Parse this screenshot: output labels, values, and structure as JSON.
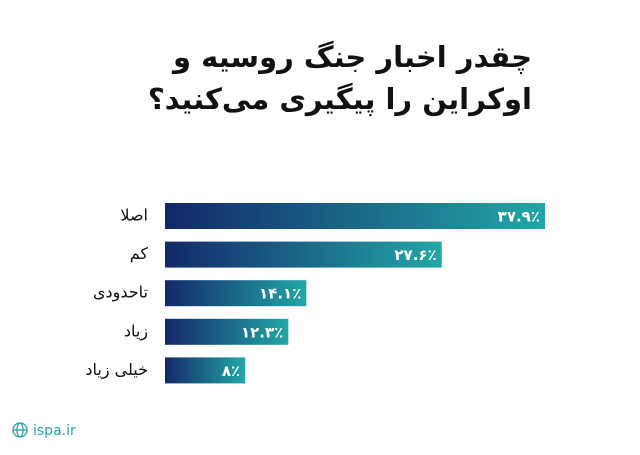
{
  "chart_data": {
    "type": "bar",
    "orientation": "horizontal",
    "title": "چقدر اخبار جنگ روسیه و اوکراین را پیگیری می‌کنید؟",
    "categories": [
      "اصلا",
      "کم",
      "تاحدودی",
      "زیاد",
      "خیلی زیاد"
    ],
    "values": [
      37.9,
      27.6,
      14.1,
      12.3,
      8
    ],
    "value_labels": [
      "۳۷.۹٪",
      "۲۷.۶٪",
      "۱۴.۱٪",
      "۱۲.۳٪",
      "۸٪"
    ],
    "gradient": [
      "#13286a",
      "#22a7a6"
    ],
    "source": "ispa.ir"
  }
}
